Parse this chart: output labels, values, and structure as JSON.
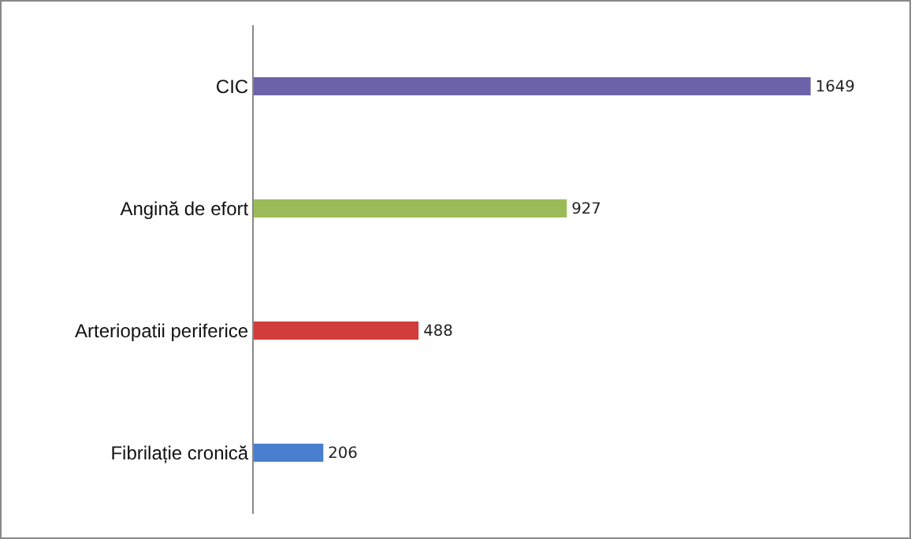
{
  "chart_data": {
    "type": "bar",
    "orientation": "horizontal",
    "categories": [
      "CIC",
      "Angină de efort",
      "Arteriopatii periferice",
      "Fibrilație cronică"
    ],
    "values": [
      1649,
      927,
      488,
      206
    ],
    "colors": [
      "#6b63a9",
      "#9bbb59",
      "#d03d3a",
      "#4a7fd0"
    ],
    "data_labels": true,
    "grid": false,
    "legend": false
  }
}
